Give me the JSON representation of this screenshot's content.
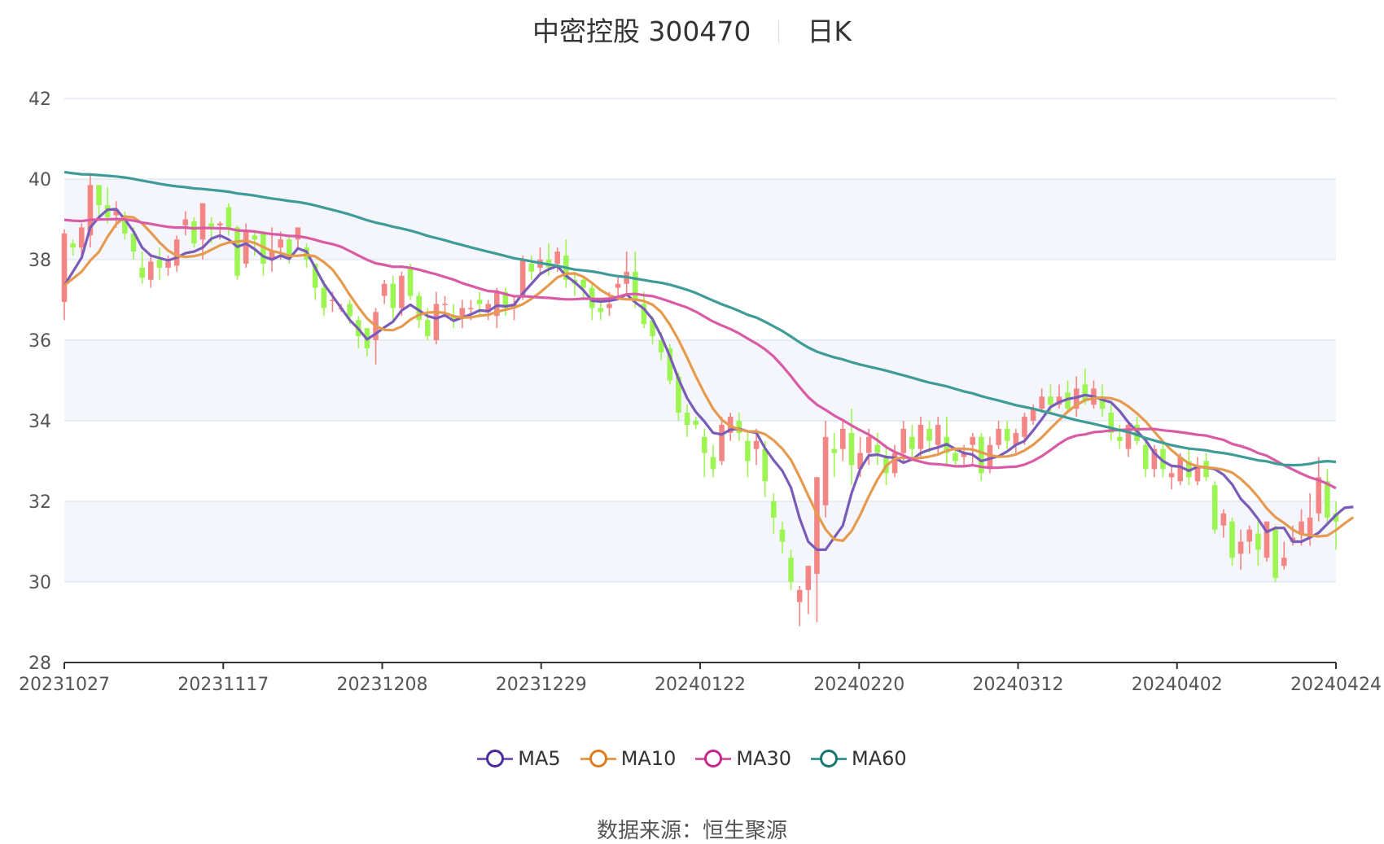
{
  "title": {
    "name": "中密控股 300470",
    "period": "日K"
  },
  "source": {
    "label": "数据来源：",
    "value": "恒生聚源"
  },
  "colors": {
    "up": "#f48585",
    "down": "#9cf550",
    "grid": "#dde3ef",
    "band": "#f4f6fb",
    "axis": "#333333"
  },
  "chart_data": {
    "type": "candlestick",
    "x_ticks": [
      "20231027",
      "20231117",
      "20231208",
      "20231229",
      "20240122",
      "20240220",
      "20240312",
      "20240402",
      "20240424"
    ],
    "ylim": [
      28,
      42
    ],
    "y_ticks": [
      28,
      30,
      32,
      34,
      36,
      38,
      40,
      42
    ],
    "candles": [
      [
        36.95,
        38.65,
        38.75,
        36.5
      ],
      [
        38.4,
        38.3,
        38.5,
        38.1
      ],
      [
        38.3,
        38.8,
        38.9,
        38.0
      ],
      [
        38.6,
        39.85,
        40.15,
        38.3
      ],
      [
        39.85,
        39.35,
        39.85,
        39.0
      ],
      [
        39.35,
        39.05,
        39.8,
        38.9
      ],
      [
        39.1,
        39.25,
        39.45,
        38.8
      ],
      [
        39.1,
        38.65,
        39.2,
        38.5
      ],
      [
        38.65,
        38.2,
        38.8,
        38.0
      ],
      [
        37.8,
        37.55,
        38.2,
        37.4
      ],
      [
        37.5,
        37.95,
        38.15,
        37.3
      ],
      [
        38.0,
        37.8,
        38.3,
        37.5
      ],
      [
        37.8,
        37.95,
        38.1,
        37.6
      ],
      [
        37.85,
        38.5,
        38.6,
        37.7
      ],
      [
        38.85,
        39.0,
        39.2,
        38.6
      ],
      [
        38.95,
        38.4,
        39.05,
        38.3
      ],
      [
        38.5,
        39.4,
        39.4,
        38.0
      ],
      [
        38.9,
        38.8,
        39.05,
        38.4
      ],
      [
        38.85,
        38.9,
        38.95,
        38.5
      ],
      [
        39.3,
        38.8,
        39.4,
        38.6
      ],
      [
        38.8,
        37.6,
        38.85,
        37.5
      ],
      [
        37.9,
        38.7,
        38.9,
        37.8
      ],
      [
        38.6,
        38.5,
        38.7,
        38.1
      ],
      [
        38.7,
        37.9,
        38.7,
        37.6
      ],
      [
        38.0,
        38.2,
        38.8,
        37.7
      ],
      [
        38.3,
        38.5,
        38.7,
        38.0
      ],
      [
        38.5,
        38.1,
        38.6,
        37.9
      ],
      [
        38.5,
        38.8,
        38.8,
        38.3
      ],
      [
        38.3,
        38.0,
        38.4,
        37.8
      ],
      [
        37.9,
        37.3,
        37.9,
        37.0
      ],
      [
        37.3,
        36.8,
        37.5,
        36.6
      ],
      [
        37.0,
        37.0,
        37.2,
        36.7
      ],
      [
        36.8,
        36.8,
        36.9,
        36.7
      ],
      [
        36.9,
        36.6,
        37.0,
        36.4
      ],
      [
        36.5,
        36.1,
        36.6,
        35.8
      ],
      [
        36.3,
        35.8,
        36.3,
        35.6
      ],
      [
        36.0,
        36.7,
        36.8,
        35.4
      ],
      [
        37.1,
        37.4,
        37.5,
        36.9
      ],
      [
        37.4,
        36.8,
        37.6,
        36.5
      ],
      [
        36.8,
        37.6,
        37.7,
        36.6
      ],
      [
        37.8,
        37.1,
        37.9,
        37.0
      ],
      [
        37.1,
        36.5,
        37.2,
        36.3
      ],
      [
        36.5,
        36.1,
        36.8,
        36.0
      ],
      [
        36.0,
        36.9,
        37.2,
        35.9
      ],
      [
        36.9,
        36.9,
        37.1,
        36.7
      ],
      [
        36.6,
        36.5,
        36.9,
        36.3
      ],
      [
        36.6,
        36.8,
        37.0,
        36.3
      ],
      [
        36.8,
        36.8,
        37.0,
        36.5
      ],
      [
        37.0,
        36.9,
        37.2,
        36.6
      ],
      [
        36.7,
        36.9,
        37.0,
        36.5
      ],
      [
        36.6,
        37.2,
        37.3,
        36.3
      ],
      [
        37.2,
        36.8,
        37.3,
        36.6
      ],
      [
        36.8,
        36.9,
        37.1,
        36.5
      ],
      [
        37.1,
        38.0,
        38.1,
        37.0
      ],
      [
        37.9,
        37.7,
        38.1,
        37.5
      ],
      [
        37.8,
        38.0,
        38.3,
        37.6
      ],
      [
        38.0,
        37.8,
        38.4,
        37.6
      ],
      [
        37.9,
        38.2,
        38.3,
        37.7
      ],
      [
        38.1,
        37.5,
        38.5,
        37.3
      ],
      [
        37.5,
        37.4,
        37.7,
        37.1
      ],
      [
        37.5,
        37.3,
        37.6,
        37.0
      ],
      [
        37.3,
        36.8,
        37.4,
        36.5
      ],
      [
        36.8,
        36.7,
        37.0,
        36.5
      ],
      [
        36.8,
        36.9,
        37.2,
        36.6
      ],
      [
        37.3,
        37.4,
        37.6,
        37.0
      ],
      [
        37.4,
        37.7,
        38.2,
        37.1
      ],
      [
        37.7,
        37.0,
        38.2,
        36.8
      ],
      [
        36.9,
        36.4,
        37.2,
        36.3
      ],
      [
        36.5,
        36.1,
        36.6,
        35.9
      ],
      [
        36.0,
        35.7,
        36.2,
        35.5
      ],
      [
        35.8,
        35.0,
        35.9,
        34.9
      ],
      [
        35.1,
        34.2,
        35.2,
        34.0
      ],
      [
        34.2,
        33.9,
        34.4,
        33.6
      ],
      [
        34.0,
        33.9,
        34.1,
        33.8
      ],
      [
        33.6,
        33.2,
        33.8,
        32.6
      ],
      [
        33.1,
        32.8,
        33.4,
        32.6
      ],
      [
        33.0,
        33.9,
        34.1,
        32.9
      ],
      [
        33.7,
        34.1,
        34.2,
        33.5
      ],
      [
        34.0,
        33.7,
        34.2,
        33.5
      ],
      [
        33.5,
        33.0,
        33.7,
        32.6
      ],
      [
        33.3,
        33.5,
        33.8,
        32.9
      ],
      [
        33.3,
        32.5,
        33.5,
        32.1
      ],
      [
        32.0,
        31.6,
        32.2,
        31.2
      ],
      [
        31.3,
        31.0,
        31.5,
        30.7
      ],
      [
        30.6,
        30.0,
        30.8,
        29.8
      ],
      [
        29.5,
        29.8,
        29.9,
        28.9
      ],
      [
        29.8,
        30.4,
        30.4,
        29.2
      ],
      [
        30.2,
        32.6,
        32.6,
        29.0
      ],
      [
        31.9,
        33.6,
        34.0,
        31.6
      ],
      [
        33.3,
        33.2,
        33.7,
        32.6
      ],
      [
        33.3,
        33.8,
        34.0,
        33.0
      ],
      [
        33.7,
        32.9,
        34.3,
        32.4
      ],
      [
        32.8,
        33.2,
        33.6,
        32.6
      ],
      [
        33.2,
        33.6,
        33.8,
        32.9
      ],
      [
        33.4,
        33.2,
        33.7,
        32.9
      ],
      [
        33.1,
        32.7,
        33.4,
        32.4
      ],
      [
        32.7,
        33.2,
        33.4,
        32.6
      ],
      [
        33.2,
        33.8,
        34.0,
        33.0
      ],
      [
        33.6,
        33.3,
        33.9,
        33.1
      ],
      [
        33.3,
        33.9,
        34.1,
        33.1
      ],
      [
        33.8,
        33.5,
        34.0,
        33.2
      ],
      [
        33.4,
        33.9,
        34.1,
        33.2
      ],
      [
        33.6,
        33.2,
        34.1,
        32.9
      ],
      [
        33.2,
        33.0,
        33.3,
        32.9
      ],
      [
        33.1,
        33.2,
        33.4,
        32.9
      ],
      [
        33.4,
        33.6,
        33.7,
        32.9
      ],
      [
        33.6,
        32.7,
        33.7,
        32.5
      ],
      [
        32.8,
        33.4,
        33.6,
        32.7
      ],
      [
        33.4,
        33.8,
        34.0,
        33.3
      ],
      [
        33.8,
        33.5,
        34.0,
        33.3
      ],
      [
        33.4,
        33.7,
        33.8,
        33.2
      ],
      [
        33.6,
        34.1,
        34.2,
        33.4
      ],
      [
        34.0,
        34.3,
        34.4,
        33.9
      ],
      [
        34.3,
        34.6,
        34.8,
        34.2
      ],
      [
        34.6,
        34.4,
        34.9,
        34.2
      ],
      [
        34.4,
        34.6,
        34.9,
        34.3
      ],
      [
        34.7,
        34.3,
        35.0,
        34.2
      ],
      [
        34.3,
        34.8,
        35.1,
        34.1
      ],
      [
        34.9,
        34.5,
        35.3,
        34.4
      ],
      [
        34.4,
        34.8,
        35.0,
        34.3
      ],
      [
        34.6,
        34.3,
        34.9,
        34.1
      ],
      [
        34.2,
        33.7,
        34.4,
        33.5
      ],
      [
        33.6,
        33.5,
        33.9,
        33.3
      ],
      [
        33.3,
        33.9,
        34.0,
        33.1
      ],
      [
        33.9,
        33.5,
        34.1,
        33.4
      ],
      [
        33.4,
        32.8,
        33.5,
        32.6
      ],
      [
        32.8,
        33.3,
        33.4,
        32.6
      ],
      [
        33.3,
        32.8,
        33.5,
        32.6
      ],
      [
        32.6,
        32.7,
        32.9,
        32.3
      ],
      [
        32.5,
        33.1,
        33.2,
        32.4
      ],
      [
        33.0,
        32.6,
        33.3,
        32.4
      ],
      [
        32.5,
        32.9,
        33.1,
        32.4
      ],
      [
        33.0,
        32.6,
        33.2,
        32.5
      ],
      [
        32.4,
        31.3,
        32.5,
        31.2
      ],
      [
        31.4,
        31.7,
        31.8,
        31.1
      ],
      [
        31.5,
        30.6,
        31.6,
        30.4
      ],
      [
        30.7,
        31.0,
        31.3,
        30.3
      ],
      [
        31.0,
        31.3,
        31.4,
        30.7
      ],
      [
        31.2,
        30.8,
        31.5,
        30.4
      ],
      [
        30.6,
        31.5,
        31.5,
        30.5
      ],
      [
        31.3,
        30.1,
        31.4,
        30.0
      ],
      [
        30.4,
        30.6,
        31.0,
        30.3
      ],
      [
        31.0,
        31.1,
        31.4,
        30.9
      ],
      [
        31.2,
        31.5,
        31.8,
        30.9
      ],
      [
        31.1,
        31.6,
        32.2,
        30.9
      ],
      [
        31.7,
        32.6,
        33.1,
        31.5
      ],
      [
        32.5,
        31.6,
        32.8,
        31.4
      ],
      [
        31.7,
        31.5,
        32.0,
        30.8
      ]
    ],
    "ma": {
      "MA5": [
        37.36,
        37.7,
        38.05,
        38.8,
        39.05,
        39.24,
        39.25,
        39.0,
        38.7,
        38.3,
        38.1,
        38.04,
        37.98,
        38.05,
        38.16,
        38.2,
        38.3,
        38.52,
        38.6,
        38.5,
        38.32,
        38.4,
        38.26,
        38.08,
        38.0,
        38.1,
        38.02,
        38.28,
        38.2,
        37.8,
        37.4,
        37.1,
        36.8,
        36.5,
        36.28,
        36.02,
        36.16,
        36.32,
        36.46,
        36.74,
        36.88,
        36.74,
        36.6,
        36.54,
        36.62,
        36.48,
        36.56,
        36.64,
        36.74,
        36.72,
        36.86,
        36.84,
        36.88,
        37.16,
        37.4,
        37.64,
        37.76,
        37.84,
        37.6,
        37.44,
        37.24,
        36.98,
        36.96,
        36.98,
        37.02,
        37.14,
        36.94,
        36.78,
        36.52,
        36.1,
        35.6,
        35.04,
        34.56,
        34.22,
        33.98,
        33.7,
        33.66,
        33.78,
        33.8,
        33.74,
        33.7,
        33.32,
        33.02,
        32.76,
        32.34,
        31.58,
        31.0,
        30.8,
        30.8,
        31.1,
        31.4,
        32.2,
        32.8,
        33.14,
        33.16,
        33.1,
        33.08,
        32.96,
        33.04,
        33.2,
        33.28,
        33.34,
        33.42,
        33.3,
        33.2,
        33.16,
        33.0,
        33.06,
        33.12,
        33.24,
        33.4,
        33.5,
        33.76,
        34.04,
        34.34,
        34.46,
        34.54,
        34.58,
        34.64,
        34.6,
        34.52,
        34.46,
        34.24,
        33.96,
        33.74,
        33.52,
        33.2,
        33.0,
        32.88,
        32.86,
        32.76,
        32.86,
        32.84,
        32.8,
        32.66,
        32.42,
        32.06,
        31.84,
        31.56,
        31.24,
        31.34,
        31.34,
        31.0,
        31.0,
        31.1,
        31.22,
        31.44,
        31.66,
        31.84,
        31.86
      ]
    },
    "legend": [
      "MA5",
      "MA10",
      "MA30",
      "MA60"
    ]
  }
}
